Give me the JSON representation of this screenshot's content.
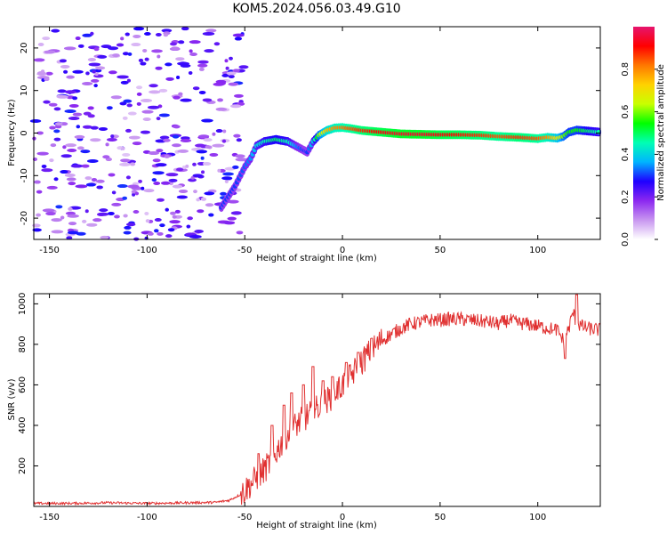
{
  "title": "KOM5.2024.056.03.49.G10",
  "chart_data": [
    {
      "type": "heatmap",
      "xlabel": "Height of straight line (km)",
      "ylabel": "Frequency (Hz)",
      "xlim": [
        -158,
        132
      ],
      "ylim": [
        -25,
        25
      ],
      "xticks": [
        -150,
        -100,
        -50,
        0,
        50,
        100
      ],
      "yticks": [
        -20,
        -10,
        0,
        10,
        20
      ],
      "colorbar": {
        "label": "Normalized spectral amplitude",
        "range": [
          0,
          1
        ],
        "ticks": [
          0.0,
          0.2,
          0.4,
          0.6,
          0.8
        ],
        "colormap": [
          "#ffffff",
          "#c896f0",
          "#8c28f0",
          "#1e00ff",
          "#00b4ff",
          "#00ffb4",
          "#00ff00",
          "#c8ff00",
          "#ffd200",
          "#ff7800",
          "#ff0000",
          "#e6146e"
        ]
      },
      "ridge": {
        "x": [
          -62,
          -55,
          -50,
          -47,
          -44,
          -40,
          -34,
          -28,
          -24,
          -20,
          -18,
          -15,
          -12,
          -8,
          -4,
          0,
          5,
          10,
          20,
          30,
          40,
          50,
          60,
          70,
          80,
          90,
          100,
          105,
          110,
          113,
          116,
          120,
          125,
          132
        ],
        "y": [
          -17.5,
          -12.5,
          -8,
          -6,
          -3,
          -2,
          -1.5,
          -2,
          -3,
          -4,
          -4.5,
          -2,
          -0.5,
          0.6,
          1.2,
          1.3,
          1,
          0.6,
          0.2,
          -0.2,
          -0.3,
          -0.4,
          -0.4,
          -0.5,
          -0.8,
          -1,
          -1.3,
          -1,
          -1.2,
          -0.8,
          0.2,
          0.7,
          0.5,
          0.2
        ],
        "amplitude": [
          0.3,
          0.3,
          0.32,
          0.35,
          0.4,
          0.45,
          0.5,
          0.45,
          0.35,
          0.3,
          0.3,
          0.4,
          0.6,
          0.75,
          0.8,
          0.82,
          0.85,
          0.88,
          0.92,
          0.95,
          0.95,
          0.92,
          0.9,
          0.88,
          0.85,
          0.88,
          0.85,
          0.8,
          0.7,
          0.6,
          0.55,
          0.55,
          0.5,
          0.45
        ]
      },
      "noise_region_x": [
        -158,
        -50
      ],
      "noise_amplitude_range": [
        0.05,
        0.3
      ]
    },
    {
      "type": "line",
      "xlabel": "Height of straight line (km)",
      "ylabel": "SNR (v/v)",
      "xlim": [
        -158,
        132
      ],
      "ylim": [
        0,
        1050
      ],
      "xticks": [
        -150,
        -100,
        -50,
        0,
        50,
        100
      ],
      "yticks": [
        200,
        400,
        600,
        800,
        1000
      ],
      "color": "#e03030",
      "series": [
        {
          "x": [
            -158,
            -140,
            -120,
            -100,
            -80,
            -65,
            -58,
            -52,
            -48,
            -44,
            -40,
            -36,
            -32,
            -28,
            -24,
            -20,
            -16,
            -12,
            -8,
            -4,
            0,
            4,
            8,
            12,
            16,
            20,
            25,
            30,
            35,
            40,
            45,
            50,
            55,
            60,
            65,
            70,
            75,
            80,
            85,
            90,
            95,
            100,
            105,
            110,
            113,
            116,
            118,
            120,
            125,
            132
          ],
          "y": [
            15,
            15,
            18,
            15,
            18,
            20,
            30,
            60,
            100,
            140,
            180,
            230,
            300,
            360,
            400,
            430,
            460,
            490,
            520,
            560,
            600,
            640,
            690,
            740,
            780,
            820,
            850,
            880,
            900,
            910,
            920,
            920,
            925,
            925,
            920,
            915,
            910,
            900,
            920,
            905,
            900,
            890,
            880,
            870,
            820,
            880,
            960,
            900,
            880,
            870
          ]
        }
      ],
      "spikes": [
        {
          "x": -43,
          "y": 260
        },
        {
          "x": -36,
          "y": 400
        },
        {
          "x": -30,
          "y": 500
        },
        {
          "x": -26,
          "y": 560
        },
        {
          "x": -20,
          "y": 600
        },
        {
          "x": -15,
          "y": 690
        },
        {
          "x": -10,
          "y": 620
        },
        {
          "x": -5,
          "y": 640
        },
        {
          "x": 2,
          "y": 710
        },
        {
          "x": 8,
          "y": 760
        },
        {
          "x": 15,
          "y": 830
        },
        {
          "x": 108,
          "y": 870
        },
        {
          "x": 114,
          "y": 730
        },
        {
          "x": 120,
          "y": 1045
        }
      ]
    }
  ]
}
